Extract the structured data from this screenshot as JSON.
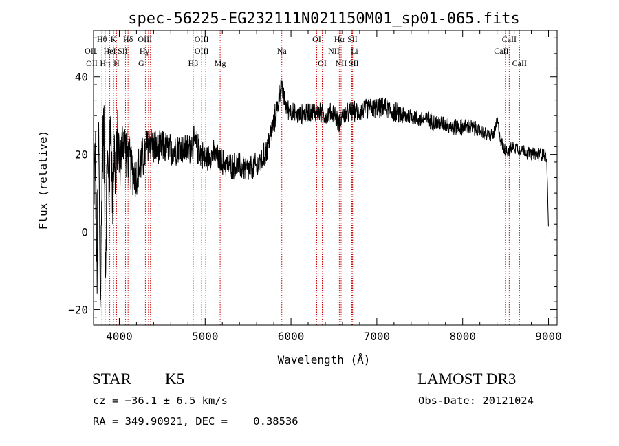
{
  "chart_data": {
    "type": "line",
    "title": "spec-56225-EG232111N021150M01_sp01-065.fits",
    "xlabel": "Wavelength (Å)",
    "ylabel": "Flux (relative)",
    "xlim": [
      3700,
      9100
    ],
    "ylim": [
      -24,
      52
    ],
    "x_ticks": [
      4000,
      5000,
      6000,
      7000,
      8000,
      9000
    ],
    "y_ticks": [
      -20,
      0,
      20,
      40
    ],
    "x_tick_labels": [
      "4000",
      "5000",
      "6000",
      "7000",
      "8000",
      "9000"
    ],
    "y_tick_labels": [
      "−20",
      "0",
      "20",
      "40"
    ],
    "grid": false,
    "series": [
      {
        "name": "flux",
        "x": [
          3700,
          3720,
          3740,
          3760,
          3780,
          3800,
          3820,
          3840,
          3860,
          3880,
          3900,
          3920,
          3940,
          3960,
          3980,
          4000,
          4050,
          4100,
          4150,
          4200,
          4250,
          4300,
          4350,
          4400,
          4450,
          4500,
          4600,
          4700,
          4800,
          4850,
          4900,
          5000,
          5100,
          5200,
          5300,
          5400,
          5500,
          5600,
          5650,
          5700,
          5750,
          5800,
          5850,
          5880,
          5900,
          5950,
          6000,
          6100,
          6200,
          6300,
          6400,
          6500,
          6550,
          6600,
          6700,
          6800,
          6900,
          7000,
          7100,
          7200,
          7300,
          7400,
          7500,
          7600,
          7700,
          7800,
          7900,
          8000,
          8100,
          8200,
          8300,
          8350,
          8380,
          8400,
          8450,
          8500,
          8550,
          8600,
          8700,
          8800,
          8900,
          8960,
          8980,
          8990,
          9000
        ],
        "y": [
          5,
          22,
          -12,
          25,
          -20,
          18,
          27,
          -8,
          20,
          10,
          30,
          8,
          22,
          12,
          26,
          18,
          24,
          19,
          16,
          14,
          18,
          20,
          24,
          22,
          21,
          22,
          21,
          22,
          21,
          23,
          22,
          19,
          20,
          18,
          17,
          17,
          16,
          17,
          18,
          20,
          24,
          28,
          33,
          38,
          36,
          32,
          31,
          30,
          31,
          31,
          30,
          31,
          28,
          30,
          31,
          31,
          32,
          32,
          32,
          31,
          30,
          30,
          29,
          29,
          28,
          28,
          27,
          27,
          27,
          26,
          25,
          25,
          26,
          29,
          23,
          21,
          21,
          22,
          21,
          20,
          20,
          20,
          18,
          10,
          0
        ],
        "noise": [
          3,
          14,
          14,
          14,
          12,
          11,
          12,
          12,
          11,
          11,
          11,
          11,
          11,
          10,
          10,
          9,
          8,
          8,
          7,
          7,
          7,
          6,
          6,
          6,
          5,
          5,
          5,
          5,
          5,
          5,
          5,
          4,
          4,
          4,
          4,
          4,
          4,
          4,
          4,
          4,
          4,
          4,
          4,
          3,
          3,
          3,
          3,
          3,
          3,
          3,
          3,
          3,
          3,
          3,
          3,
          3,
          3,
          3,
          3,
          3,
          3,
          2.5,
          2.5,
          2.5,
          2.5,
          2.5,
          2.5,
          2.5,
          2.5,
          2,
          2,
          2,
          2,
          2,
          2,
          2,
          2,
          2,
          2,
          2,
          2,
          2,
          1,
          0.5,
          0.5
        ]
      }
    ],
    "line_markers": [
      {
        "label": "Hθ",
        "x": 3798,
        "row": 1,
        "dx": 0
      },
      {
        "label": "OII",
        "x": 3728,
        "row": 2,
        "dx": -8
      },
      {
        "label": "HeI",
        "x": 3889,
        "row": 2,
        "dx": 0
      },
      {
        "label": "OII",
        "x": 3728,
        "row": 3,
        "dx": -6
      },
      {
        "label": "Hη",
        "x": 3835,
        "row": 3,
        "dx": 0
      },
      {
        "label": "K",
        "x": 3933,
        "row": 1,
        "dx": 0
      },
      {
        "label": "H",
        "x": 3968,
        "row": 3,
        "dx": 0
      },
      {
        "label": "Hδ",
        "x": 4102,
        "row": 1,
        "dx": 0
      },
      {
        "label": "SII",
        "x": 4072,
        "row": 2,
        "dx": -4
      },
      {
        "label": "OIII",
        "x": 4363,
        "row": 1,
        "dx": -8
      },
      {
        "label": "Hγ",
        "x": 4340,
        "row": 2,
        "dx": -6
      },
      {
        "label": "G",
        "x": 4304,
        "row": 3,
        "dx": -6
      },
      {
        "label": "Hβ",
        "x": 4861,
        "row": 3,
        "dx": 0
      },
      {
        "label": "OIII",
        "x": 4959,
        "row": 2,
        "dx": 0
      },
      {
        "label": "OIII",
        "x": 5007,
        "row": 1,
        "dx": -6
      },
      {
        "label": "Mg",
        "x": 5175,
        "row": 3,
        "dx": 0
      },
      {
        "label": "Na",
        "x": 5893,
        "row": 2,
        "dx": 0
      },
      {
        "label": "OI",
        "x": 6300,
        "row": 1,
        "dx": 0
      },
      {
        "label": "OI",
        "x": 6364,
        "row": 3,
        "dx": 0
      },
      {
        "label": "Hα",
        "x": 6563,
        "row": 1,
        "dx": 0
      },
      {
        "label": "NII",
        "x": 6548,
        "row": 2,
        "dx": -6
      },
      {
        "label": "NII",
        "x": 6584,
        "row": 3,
        "dx": 0
      },
      {
        "label": "SII",
        "x": 6716,
        "row": 1,
        "dx": 0
      },
      {
        "label": "Li",
        "x": 6708,
        "row": 2,
        "dx": 4
      },
      {
        "label": "SII",
        "x": 6731,
        "row": 3,
        "dx": 0
      },
      {
        "label": "CaII",
        "x": 8542,
        "row": 1,
        "dx": 0
      },
      {
        "label": "CaII",
        "x": 8498,
        "row": 2,
        "dx": -6
      },
      {
        "label": "CaII",
        "x": 8662,
        "row": 3,
        "dx": 0
      }
    ]
  },
  "info": {
    "object_class": "STAR",
    "subclass": "K5",
    "cz": "cz = −36.1 ± 6.5 km/s",
    "coords": "RA = 349.90921, DEC =    0.38536",
    "survey": "LAMOST DR3",
    "obs_date": "Obs-Date: 20121024"
  },
  "colors": {
    "axis": "#000000",
    "spectrum": "#000000",
    "marker_line": "#cc0000",
    "background": "#ffffff"
  }
}
